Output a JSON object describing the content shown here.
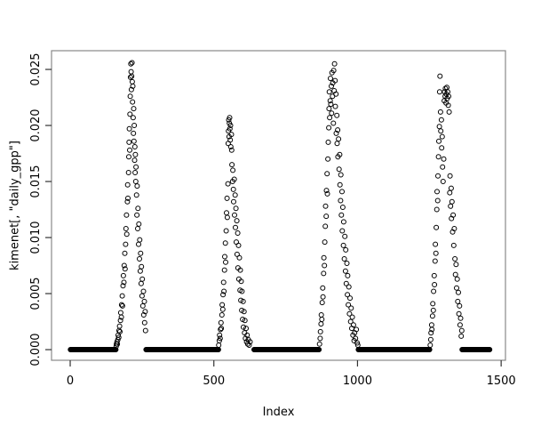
{
  "chart_data": {
    "type": "scatter",
    "title": "",
    "xlabel": "Index",
    "ylabel": "kimenet[, \"daily_gpp\"]",
    "point_style": "open-circle",
    "legend": "none",
    "grid": "off",
    "xlim": [
      -65,
      1515
    ],
    "ylim": [
      -0.00095,
      0.02667
    ],
    "x_data_range": [
      1,
      1461
    ],
    "y_data_range": [
      0,
      0.0256
    ],
    "x_ticks": [
      {
        "value": 0,
        "label": "0"
      },
      {
        "value": 500,
        "label": "500"
      },
      {
        "value": 1000,
        "label": "1000"
      },
      {
        "value": 1500,
        "label": "1500"
      }
    ],
    "y_ticks": [
      {
        "value": 0.0,
        "label": "0.000"
      },
      {
        "value": 0.005,
        "label": "0.005"
      },
      {
        "value": 0.01,
        "label": "0.010"
      },
      {
        "value": 0.015,
        "label": "0.015"
      },
      {
        "value": 0.02,
        "label": "0.020"
      },
      {
        "value": 0.025,
        "label": "0.025"
      }
    ],
    "colors": {
      "points": "#000000",
      "box": "#888888",
      "ticks": "#333333",
      "text": "#000000",
      "background": "#ffffff"
    },
    "zero_runs": [
      [
        1,
        159
      ],
      [
        264,
        516
      ],
      [
        640,
        866
      ],
      [
        1003,
        1252
      ],
      [
        1364,
        1461
      ]
    ],
    "points": [
      [
        160,
        0.0003
      ],
      [
        161,
        0.0005
      ],
      [
        163,
        0.0007
      ],
      [
        164,
        0.0005
      ],
      [
        166,
        0.0009
      ],
      [
        167,
        0.0013
      ],
      [
        169,
        0.0011
      ],
      [
        170,
        0.0017
      ],
      [
        172,
        0.0021
      ],
      [
        173,
        0.0016
      ],
      [
        175,
        0.0026
      ],
      [
        176,
        0.0033
      ],
      [
        178,
        0.0029
      ],
      [
        179,
        0.004
      ],
      [
        181,
        0.0048
      ],
      [
        182,
        0.0039
      ],
      [
        184,
        0.0057
      ],
      [
        185,
        0.0066
      ],
      [
        187,
        0.006
      ],
      [
        188,
        0.0075
      ],
      [
        190,
        0.0086
      ],
      [
        191,
        0.0072
      ],
      [
        193,
        0.0094
      ],
      [
        194,
        0.0108
      ],
      [
        196,
        0.012
      ],
      [
        197,
        0.0103
      ],
      [
        199,
        0.0132
      ],
      [
        200,
        0.0147
      ],
      [
        201,
        0.0135
      ],
      [
        203,
        0.0158
      ],
      [
        204,
        0.0172
      ],
      [
        205,
        0.0185
      ],
      [
        206,
        0.0197
      ],
      [
        207,
        0.0178
      ],
      [
        208,
        0.021
      ],
      [
        209,
        0.0226
      ],
      [
        210,
        0.0243
      ],
      [
        211,
        0.0255
      ],
      [
        212,
        0.0248
      ],
      [
        213,
        0.0232
      ],
      [
        214,
        0.0244
      ],
      [
        215,
        0.0256
      ],
      [
        216,
        0.0239
      ],
      [
        217,
        0.0221
      ],
      [
        218,
        0.0235
      ],
      [
        219,
        0.0207
      ],
      [
        220,
        0.0193
      ],
      [
        221,
        0.0215
      ],
      [
        222,
        0.0186
      ],
      [
        223,
        0.02
      ],
      [
        224,
        0.0169
      ],
      [
        225,
        0.0181
      ],
      [
        226,
        0.0158
      ],
      [
        227,
        0.0174
      ],
      [
        228,
        0.015
      ],
      [
        229,
        0.0163
      ],
      [
        231,
        0.0138
      ],
      [
        232,
        0.012
      ],
      [
        233,
        0.0146
      ],
      [
        235,
        0.0108
      ],
      [
        236,
        0.0126
      ],
      [
        238,
        0.0094
      ],
      [
        239,
        0.0112
      ],
      [
        241,
        0.0081
      ],
      [
        242,
        0.0098
      ],
      [
        244,
        0.007
      ],
      [
        245,
        0.0086
      ],
      [
        247,
        0.0059
      ],
      [
        248,
        0.0074
      ],
      [
        250,
        0.0048
      ],
      [
        251,
        0.0063
      ],
      [
        253,
        0.0039
      ],
      [
        255,
        0.0052
      ],
      [
        256,
        0.0031
      ],
      [
        258,
        0.0043
      ],
      [
        259,
        0.0024
      ],
      [
        261,
        0.0034
      ],
      [
        262,
        0.0017
      ],
      [
        517,
        0.0004
      ],
      [
        519,
        0.0008
      ],
      [
        520,
        0.0013
      ],
      [
        522,
        0.001
      ],
      [
        523,
        0.0018
      ],
      [
        525,
        0.0024
      ],
      [
        526,
        0.0019
      ],
      [
        528,
        0.0031
      ],
      [
        529,
        0.004
      ],
      [
        531,
        0.0036
      ],
      [
        532,
        0.0049
      ],
      [
        534,
        0.006
      ],
      [
        535,
        0.0052
      ],
      [
        537,
        0.0071
      ],
      [
        538,
        0.0083
      ],
      [
        540,
        0.0095
      ],
      [
        541,
        0.0078
      ],
      [
        543,
        0.0106
      ],
      [
        544,
        0.0122
      ],
      [
        546,
        0.0135
      ],
      [
        547,
        0.0118
      ],
      [
        549,
        0.0148
      ],
      [
        550,
        0.0184
      ],
      [
        551,
        0.0195
      ],
      [
        552,
        0.0205
      ],
      [
        553,
        0.019
      ],
      [
        554,
        0.0202
      ],
      [
        555,
        0.0207
      ],
      [
        556,
        0.0197
      ],
      [
        557,
        0.0187
      ],
      [
        558,
        0.02
      ],
      [
        559,
        0.0181
      ],
      [
        561,
        0.0192
      ],
      [
        562,
        0.0178
      ],
      [
        563,
        0.0165
      ],
      [
        565,
        0.015
      ],
      [
        566,
        0.016
      ],
      [
        568,
        0.0143
      ],
      [
        569,
        0.0132
      ],
      [
        571,
        0.0152
      ],
      [
        572,
        0.012
      ],
      [
        574,
        0.0138
      ],
      [
        575,
        0.0109
      ],
      [
        577,
        0.0126
      ],
      [
        578,
        0.0096
      ],
      [
        580,
        0.0115
      ],
      [
        581,
        0.0085
      ],
      [
        583,
        0.0104
      ],
      [
        584,
        0.0073
      ],
      [
        586,
        0.0093
      ],
      [
        587,
        0.0063
      ],
      [
        589,
        0.0082
      ],
      [
        591,
        0.0053
      ],
      [
        592,
        0.0071
      ],
      [
        594,
        0.0044
      ],
      [
        595,
        0.0061
      ],
      [
        597,
        0.0035
      ],
      [
        598,
        0.0052
      ],
      [
        600,
        0.0027
      ],
      [
        602,
        0.0043
      ],
      [
        603,
        0.002
      ],
      [
        605,
        0.0034
      ],
      [
        607,
        0.0015
      ],
      [
        608,
        0.0026
      ],
      [
        610,
        0.001
      ],
      [
        612,
        0.0019
      ],
      [
        614,
        0.0007
      ],
      [
        616,
        0.0013
      ],
      [
        618,
        0.0005
      ],
      [
        620,
        0.0009
      ],
      [
        623,
        0.0004
      ],
      [
        626,
        0.0007
      ],
      [
        868,
        0.0005
      ],
      [
        870,
        0.001
      ],
      [
        871,
        0.0016
      ],
      [
        873,
        0.0023
      ],
      [
        874,
        0.0031
      ],
      [
        876,
        0.0027
      ],
      [
        877,
        0.0042
      ],
      [
        879,
        0.0055
      ],
      [
        880,
        0.0047
      ],
      [
        882,
        0.0068
      ],
      [
        883,
        0.0082
      ],
      [
        885,
        0.0075
      ],
      [
        886,
        0.0096
      ],
      [
        888,
        0.011
      ],
      [
        889,
        0.0128
      ],
      [
        891,
        0.0119
      ],
      [
        892,
        0.0142
      ],
      [
        894,
        0.0157
      ],
      [
        895,
        0.0139
      ],
      [
        897,
        0.017
      ],
      [
        898,
        0.0185
      ],
      [
        900,
        0.0198
      ],
      [
        901,
        0.0215
      ],
      [
        902,
        0.023
      ],
      [
        903,
        0.0207
      ],
      [
        905,
        0.0222
      ],
      [
        906,
        0.0242
      ],
      [
        907,
        0.0219
      ],
      [
        909,
        0.0235
      ],
      [
        910,
        0.0211
      ],
      [
        911,
        0.0247
      ],
      [
        913,
        0.0226
      ],
      [
        914,
        0.0238
      ],
      [
        916,
        0.0202
      ],
      [
        917,
        0.0249
      ],
      [
        919,
        0.0231
      ],
      [
        920,
        0.0255
      ],
      [
        922,
        0.024
      ],
      [
        923,
        0.0217
      ],
      [
        925,
        0.0228
      ],
      [
        926,
        0.0193
      ],
      [
        928,
        0.0209
      ],
      [
        929,
        0.0184
      ],
      [
        931,
        0.0196
      ],
      [
        932,
        0.0172
      ],
      [
        934,
        0.0188
      ],
      [
        936,
        0.0161
      ],
      [
        938,
        0.0174
      ],
      [
        939,
        0.0147
      ],
      [
        941,
        0.0133
      ],
      [
        942,
        0.0156
      ],
      [
        944,
        0.012
      ],
      [
        946,
        0.0141
      ],
      [
        947,
        0.0106
      ],
      [
        949,
        0.0127
      ],
      [
        951,
        0.0093
      ],
      [
        952,
        0.0114
      ],
      [
        954,
        0.0081
      ],
      [
        956,
        0.0101
      ],
      [
        958,
        0.007
      ],
      [
        959,
        0.0089
      ],
      [
        961,
        0.0059
      ],
      [
        963,
        0.0077
      ],
      [
        965,
        0.0049
      ],
      [
        966,
        0.0066
      ],
      [
        968,
        0.004
      ],
      [
        970,
        0.0056
      ],
      [
        972,
        0.0032
      ],
      [
        974,
        0.0046
      ],
      [
        976,
        0.0025
      ],
      [
        978,
        0.0037
      ],
      [
        980,
        0.0019
      ],
      [
        982,
        0.0029
      ],
      [
        984,
        0.0013
      ],
      [
        986,
        0.0022
      ],
      [
        988,
        0.0008
      ],
      [
        990,
        0.0015
      ],
      [
        993,
        0.001
      ],
      [
        996,
        0.0018
      ],
      [
        999,
        0.0006
      ],
      [
        1001,
        0.0004
      ],
      [
        1253,
        0.0004
      ],
      [
        1255,
        0.0009
      ],
      [
        1256,
        0.0015
      ],
      [
        1258,
        0.0022
      ],
      [
        1259,
        0.0018
      ],
      [
        1261,
        0.003
      ],
      [
        1262,
        0.0041
      ],
      [
        1264,
        0.0035
      ],
      [
        1265,
        0.0052
      ],
      [
        1267,
        0.0066
      ],
      [
        1268,
        0.0058
      ],
      [
        1270,
        0.0079
      ],
      [
        1271,
        0.0094
      ],
      [
        1273,
        0.0086
      ],
      [
        1274,
        0.0109
      ],
      [
        1276,
        0.0125
      ],
      [
        1277,
        0.0141
      ],
      [
        1279,
        0.0133
      ],
      [
        1280,
        0.0155
      ],
      [
        1282,
        0.0172
      ],
      [
        1283,
        0.0186
      ],
      [
        1285,
        0.0199
      ],
      [
        1286,
        0.023
      ],
      [
        1287,
        0.0244
      ],
      [
        1289,
        0.0212
      ],
      [
        1290,
        0.0195
      ],
      [
        1292,
        0.0205
      ],
      [
        1293,
        0.018
      ],
      [
        1295,
        0.019
      ],
      [
        1296,
        0.0163
      ],
      [
        1298,
        0.015
      ],
      [
        1300,
        0.017
      ],
      [
        1302,
        0.0222
      ],
      [
        1303,
        0.023
      ],
      [
        1305,
        0.0226
      ],
      [
        1306,
        0.0233
      ],
      [
        1308,
        0.022
      ],
      [
        1309,
        0.0228
      ],
      [
        1311,
        0.0234
      ],
      [
        1312,
        0.0224
      ],
      [
        1314,
        0.023
      ],
      [
        1316,
        0.0218
      ],
      [
        1317,
        0.0226
      ],
      [
        1319,
        0.0212
      ],
      [
        1321,
        0.014
      ],
      [
        1322,
        0.0155
      ],
      [
        1324,
        0.0128
      ],
      [
        1326,
        0.0144
      ],
      [
        1327,
        0.0117
      ],
      [
        1329,
        0.0132
      ],
      [
        1331,
        0.0105
      ],
      [
        1333,
        0.012
      ],
      [
        1335,
        0.0093
      ],
      [
        1337,
        0.0108
      ],
      [
        1339,
        0.0081
      ],
      [
        1341,
        0.0067
      ],
      [
        1343,
        0.0076
      ],
      [
        1345,
        0.0055
      ],
      [
        1347,
        0.0063
      ],
      [
        1349,
        0.0043
      ],
      [
        1351,
        0.0051
      ],
      [
        1353,
        0.0032
      ],
      [
        1355,
        0.0039
      ],
      [
        1357,
        0.0022
      ],
      [
        1359,
        0.0028
      ],
      [
        1361,
        0.0012
      ],
      [
        1363,
        0.0017
      ]
    ]
  }
}
